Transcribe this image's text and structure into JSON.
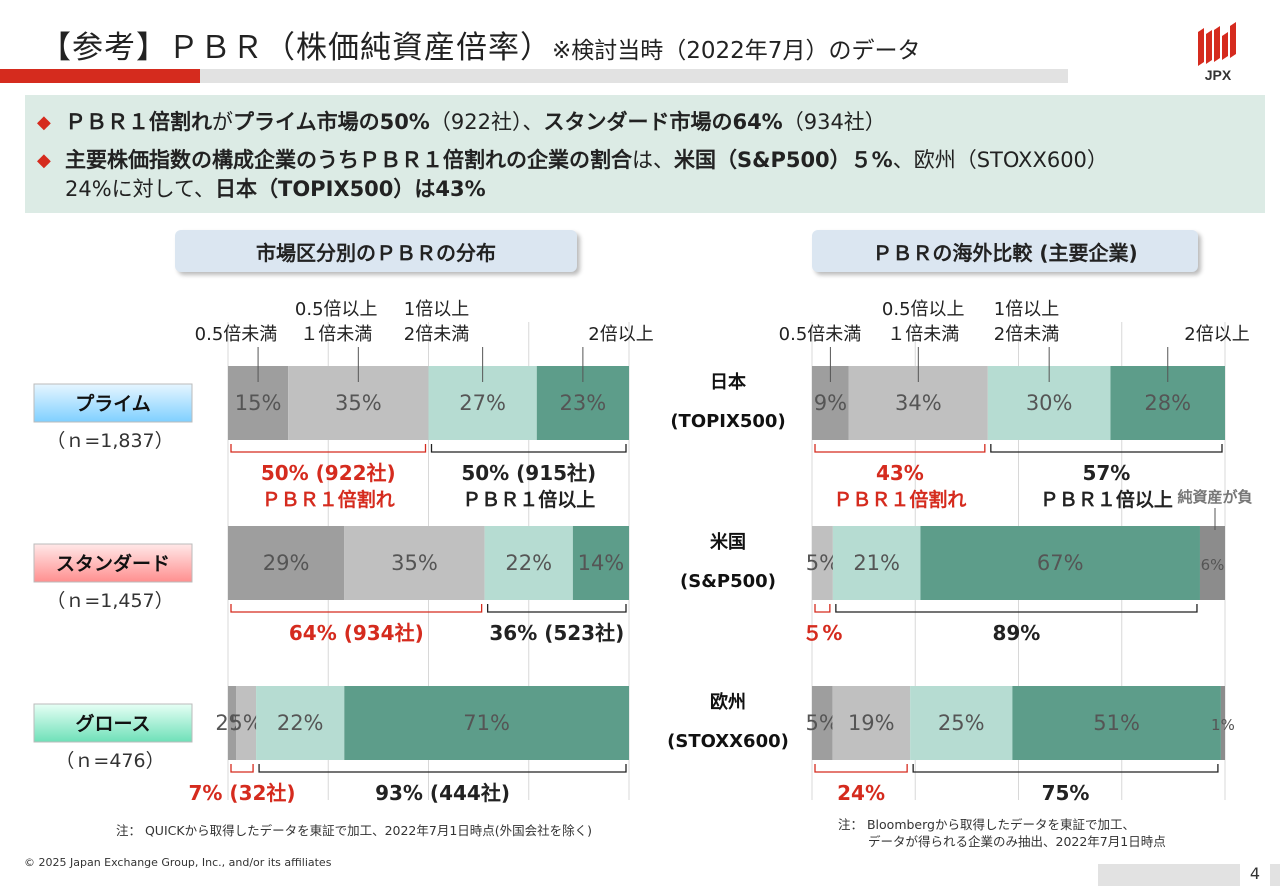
{
  "header": {
    "title_main": "【参考】ＰＢＲ（株価純資産倍率）",
    "title_sub": "※検討当時（2022年7月）のデータ",
    "logo_text": "JPX"
  },
  "summary": {
    "line1_a": "ＰＢＲ１倍割れ",
    "line1_b": "が",
    "line1_c": "プライム市場の50%",
    "line1_d": "（922社）、",
    "line1_e": "スタンダード市場の64%",
    "line1_f": "（934社）",
    "line2_a": "主要株価指数の構成企業のうちＰＢＲ１倍割れの企業の割合",
    "line2_b": "は、",
    "line2_c": "米国（S&P500）５%",
    "line2_d": "、欧州（STOXX600）",
    "line3_a": "24%に対して、",
    "line3_b": "日本（TOPIX500）は43%"
  },
  "colors": {
    "c1": "#9e9e9e",
    "c2": "#c0c0c0",
    "c3": "#b6dcd2",
    "c4": "#5d9d8a",
    "neg": "#8c8c8c",
    "red": "#d52b1e"
  },
  "chart_data": [
    {
      "type": "bar",
      "title": "市場区分別のＰＢＲの分布",
      "stacked": true,
      "orientation": "horizontal",
      "categories_header": [
        "0.5倍未満",
        "0.5倍以上\n１倍未満",
        "1倍以上\n2倍未満",
        "2倍以上"
      ],
      "rows": [
        {
          "name": "プライム",
          "n": "（ｎ=1,837）",
          "values": [
            15,
            35,
            27,
            23
          ],
          "labels": [
            "15%",
            "35%",
            "27%",
            "23%"
          ],
          "below": "50% (922社)",
          "below_sub": "ＰＢＲ１倍割れ",
          "above": "50% (915社)",
          "above_sub": "ＰＢＲ１倍以上"
        },
        {
          "name": "スタンダード",
          "n": "（ｎ=1,457）",
          "values": [
            29,
            35,
            22,
            14
          ],
          "labels": [
            "29%",
            "35%",
            "22%",
            "14%"
          ],
          "below": "64% (934社)",
          "above": "36% (523社)"
        },
        {
          "name": "グロース",
          "n": "（ｎ=476）",
          "values": [
            2,
            5,
            22,
            71
          ],
          "labels": [
            "2%",
            "5%",
            "22%",
            "71%"
          ],
          "below": "7% (32社)",
          "above": "93% (444社)"
        }
      ],
      "note": "注： QUICKから取得したデータを東証で加工、2022年7月1日時点(外国会社を除く)"
    },
    {
      "type": "bar",
      "title": "ＰＢＲの海外比較 (主要企業)",
      "stacked": true,
      "orientation": "horizontal",
      "categories_header": [
        "0.5倍未満",
        "0.5倍以上\n１倍未満",
        "1倍以上\n2倍未満",
        "2倍以上"
      ],
      "neg_label": "純資産が負",
      "rows": [
        {
          "name": "日本",
          "index": "(TOPIX500)",
          "values": [
            9,
            34,
            30,
            28,
            0
          ],
          "labels": [
            "9%",
            "34%",
            "30%",
            "28%",
            ""
          ],
          "below": "43%",
          "below_sub": "ＰＢＲ１倍割れ",
          "above": "57%",
          "above_sub": "ＰＢＲ１倍以上"
        },
        {
          "name": "米国",
          "index": "(S&P500)",
          "values": [
            0,
            5,
            21,
            67,
            6
          ],
          "labels": [
            "",
            "5%",
            "21%",
            "67%",
            "6%"
          ],
          "below": "５%",
          "above": "89%"
        },
        {
          "name": "欧州",
          "index": "(STOXX600)",
          "values": [
            5,
            19,
            25,
            51,
            1
          ],
          "labels": [
            "5%",
            "19%",
            "25%",
            "51%",
            "1%"
          ],
          "below": "24%",
          "above": "75%"
        }
      ],
      "note": "注： Bloombergから取得したデータを東証で加工、",
      "note2": "データが得られる企業のみ抽出、2022年7月1日時点"
    }
  ],
  "footer": {
    "copyright": "© 2025 Japan Exchange Group, Inc., and/or its affiliates",
    "page": "4"
  }
}
